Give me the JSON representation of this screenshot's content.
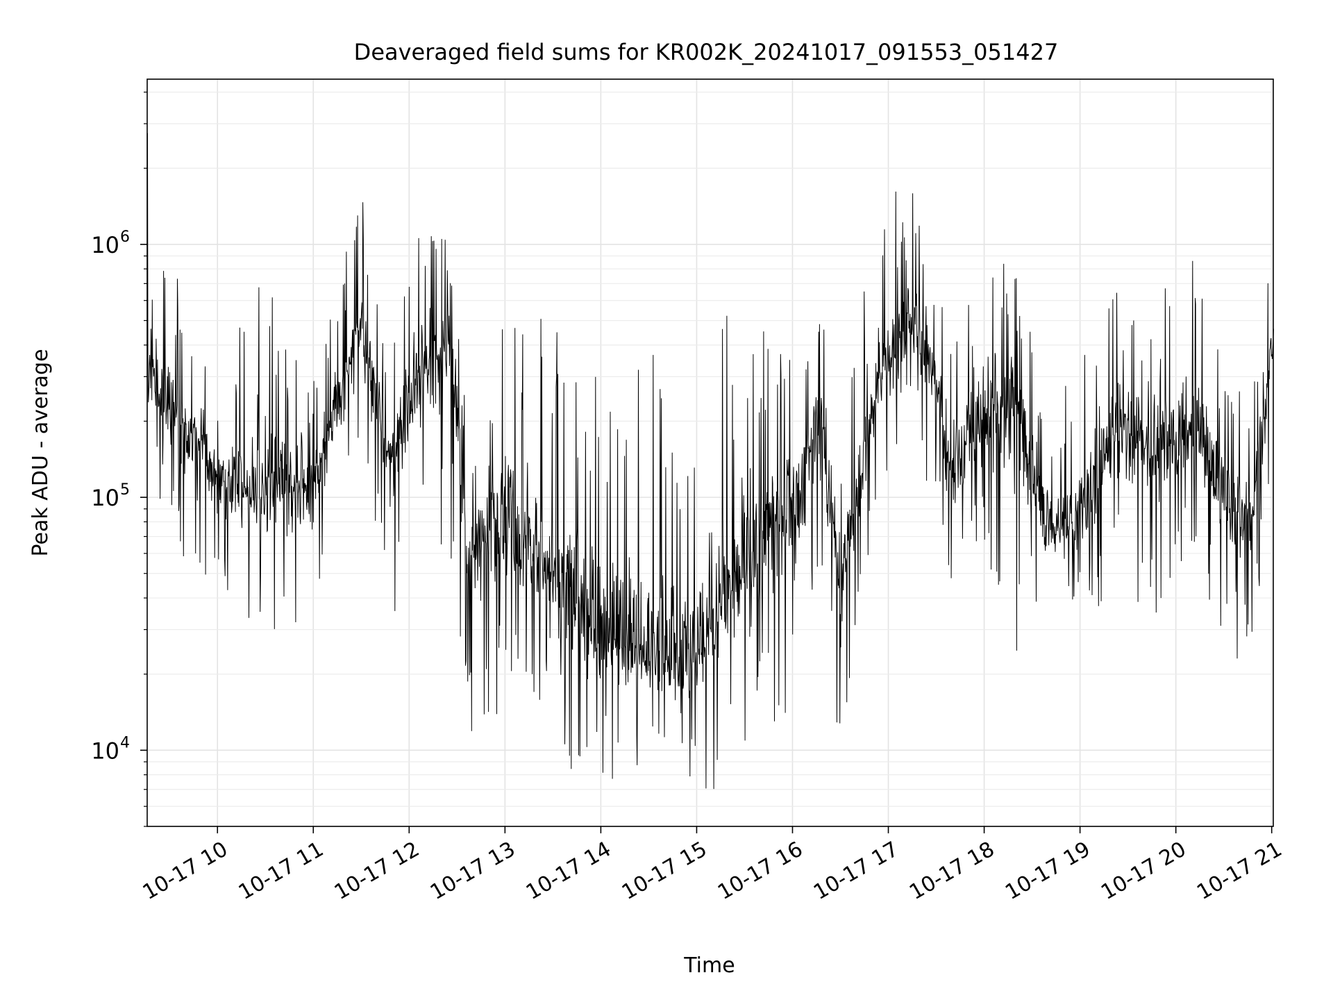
{
  "chart_data": {
    "type": "line",
    "title": "Deaveraged field sums for KR002K_20241017_091553_051427",
    "xlabel": "Time",
    "ylabel": "Peak ADU - average",
    "xaxis_type": "datetime",
    "xlim": [
      "2024-10-17 09:16",
      "2024-10-17 21:01"
    ],
    "ylim": [
      5000,
      4500000
    ],
    "yscale": "log",
    "grid": true,
    "legend": "none",
    "line_color": "#000000",
    "x_tick_labels": [
      "10-17 10",
      "10-17 11",
      "10-17 12",
      "10-17 13",
      "10-17 14",
      "10-17 15",
      "10-17 16",
      "10-17 17",
      "10-17 18",
      "10-17 19",
      "10-17 20",
      "10-17 21"
    ],
    "y_tick_labels": [
      {
        "base": "10",
        "exp": "4",
        "value": 10000
      },
      {
        "base": "10",
        "exp": "5",
        "value": 100000
      },
      {
        "base": "10",
        "exp": "6",
        "value": 1000000
      }
    ],
    "series": [
      {
        "style": "dense noisy trace; envelope listed (hour values are hours of 2024-10-17)",
        "envelope": [
          {
            "hour": 9.27,
            "typical": 300000,
            "low": 120000,
            "high": 3200000
          },
          {
            "hour": 9.6,
            "typical": 200000,
            "low": 60000,
            "high": 700000
          },
          {
            "hour": 10.0,
            "typical": 120000,
            "low": 40000,
            "high": 300000
          },
          {
            "hour": 10.4,
            "typical": 110000,
            "low": 30000,
            "high": 1100000
          },
          {
            "hour": 11.0,
            "typical": 110000,
            "low": 26000,
            "high": 300000
          },
          {
            "hour": 11.5,
            "typical": 500000,
            "low": 150000,
            "high": 1600000
          },
          {
            "hour": 11.8,
            "typical": 130000,
            "low": 28000,
            "high": 400000
          },
          {
            "hour": 12.1,
            "typical": 300000,
            "low": 90000,
            "high": 2200000
          },
          {
            "hour": 12.45,
            "typical": 400000,
            "low": 55000,
            "high": 1000000
          },
          {
            "hour": 12.6,
            "typical": 60000,
            "low": 9000,
            "high": 200000
          },
          {
            "hour": 13.0,
            "typical": 80000,
            "low": 14000,
            "high": 600000
          },
          {
            "hour": 13.5,
            "typical": 50000,
            "low": 9000,
            "high": 500000
          },
          {
            "hour": 14.0,
            "typical": 30000,
            "low": 7000,
            "high": 300000
          },
          {
            "hour": 14.5,
            "typical": 25000,
            "low": 8000,
            "high": 500000
          },
          {
            "hour": 14.85,
            "typical": 20000,
            "low": 6500,
            "high": 200000
          },
          {
            "hour": 15.2,
            "typical": 35000,
            "low": 7000,
            "high": 500000
          },
          {
            "hour": 15.6,
            "typical": 60000,
            "low": 10000,
            "high": 600000
          },
          {
            "hour": 16.0,
            "typical": 100000,
            "low": 8500,
            "high": 350000
          },
          {
            "hour": 16.3,
            "typical": 200000,
            "low": 40000,
            "high": 700000
          },
          {
            "hour": 16.5,
            "typical": 40000,
            "low": 9500,
            "high": 200000
          },
          {
            "hour": 16.9,
            "typical": 300000,
            "low": 100000,
            "high": 1700000
          },
          {
            "hour": 17.3,
            "typical": 450000,
            "low": 100000,
            "high": 1600000
          },
          {
            "hour": 17.55,
            "typical": 250000,
            "low": 110000,
            "high": 700000
          },
          {
            "hour": 17.6,
            "typical": 120000,
            "low": 45000,
            "high": 400000
          },
          {
            "hour": 18.0,
            "typical": 200000,
            "low": 60000,
            "high": 1300000
          },
          {
            "hour": 18.3,
            "typical": 250000,
            "low": 22000,
            "high": 900000
          },
          {
            "hour": 18.7,
            "typical": 70000,
            "low": 30000,
            "high": 200000
          },
          {
            "hour": 19.0,
            "typical": 90000,
            "low": 30000,
            "high": 450000
          },
          {
            "hour": 19.4,
            "typical": 200000,
            "low": 40000,
            "high": 700000
          },
          {
            "hour": 19.8,
            "typical": 150000,
            "low": 26000,
            "high": 700000
          },
          {
            "hour": 20.2,
            "typical": 200000,
            "low": 60000,
            "high": 1000000
          },
          {
            "hour": 20.5,
            "typical": 100000,
            "low": 23000,
            "high": 350000
          },
          {
            "hour": 20.8,
            "typical": 80000,
            "low": 18000,
            "high": 250000
          },
          {
            "hour": 21.02,
            "typical": 450000,
            "low": 200000,
            "high": 1500000
          }
        ]
      }
    ]
  }
}
